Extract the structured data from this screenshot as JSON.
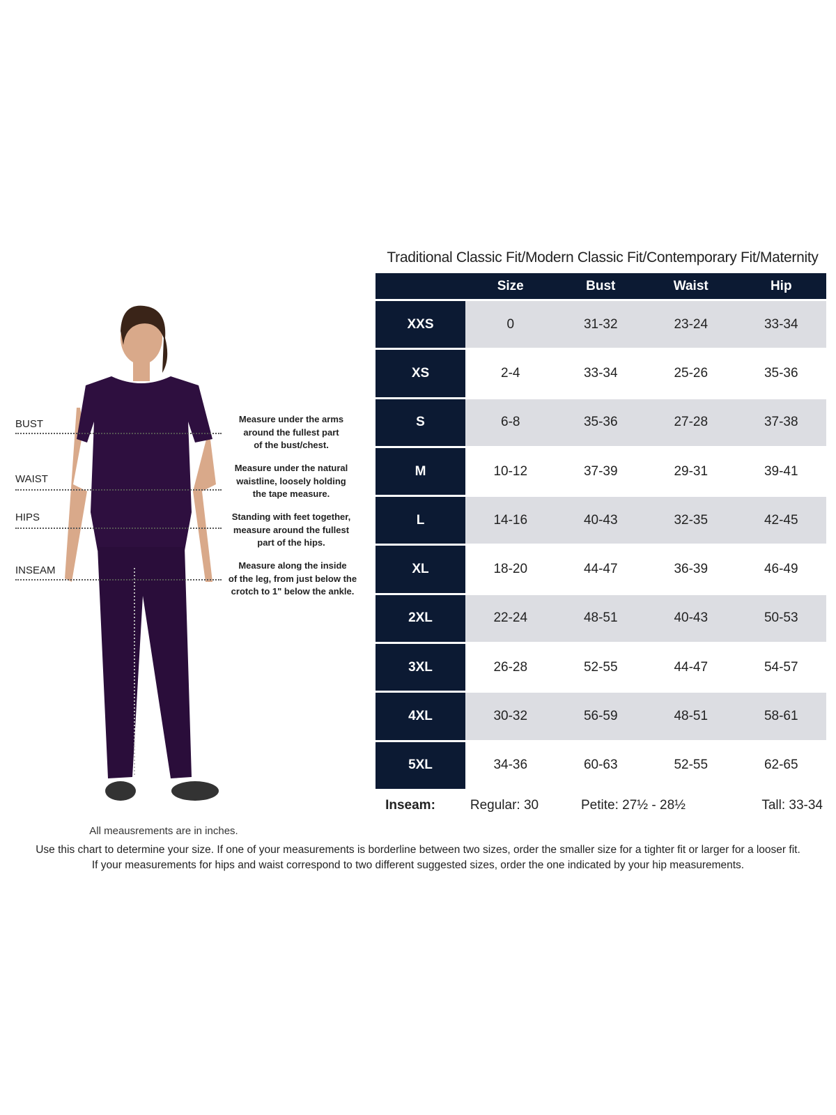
{
  "title": "Traditional Classic Fit/Modern Classic Fit/Contemporary Fit/Maternity",
  "colors": {
    "header": "#0c1a33",
    "stripe": "#dcdde2",
    "garment": "#2e0f3f"
  },
  "table": {
    "headers": [
      "",
      "Size",
      "Bust",
      "Waist",
      "Hip"
    ],
    "rows": [
      [
        "XXS",
        "0",
        "31-32",
        "23-24",
        "33-34"
      ],
      [
        "XS",
        "2-4",
        "33-34",
        "25-26",
        "35-36"
      ],
      [
        "S",
        "6-8",
        "35-36",
        "27-28",
        "37-38"
      ],
      [
        "M",
        "10-12",
        "37-39",
        "29-31",
        "39-41"
      ],
      [
        "L",
        "14-16",
        "40-43",
        "32-35",
        "42-45"
      ],
      [
        "XL",
        "18-20",
        "44-47",
        "36-39",
        "46-49"
      ],
      [
        "2XL",
        "22-24",
        "48-51",
        "40-43",
        "50-53"
      ],
      [
        "3XL",
        "26-28",
        "52-55",
        "44-47",
        "54-57"
      ],
      [
        "4XL",
        "30-32",
        "56-59",
        "48-51",
        "58-61"
      ],
      [
        "5XL",
        "34-36",
        "60-63",
        "52-55",
        "62-65"
      ]
    ]
  },
  "inseam": {
    "label": "Inseam:",
    "regular": "Regular: 30",
    "petite": "Petite: 27½ - 28½",
    "tall": "Tall: 33-34"
  },
  "measurements": [
    {
      "label": "BUST",
      "desc": [
        "Measure under the arms",
        "around the fullest part",
        "of the bust/chest."
      ]
    },
    {
      "label": "WAIST",
      "desc": [
        "Measure under the natural",
        "waistline, loosely holding",
        "the tape measure."
      ]
    },
    {
      "label": "HIPS",
      "desc": [
        "Standing with feet together,",
        "measure around the fullest",
        "part of the hips."
      ]
    },
    {
      "label": "INSEAM",
      "desc": [
        "Measure along the inside",
        "of the leg, from just below the",
        "crotch to 1\" below the ankle."
      ]
    }
  ],
  "units_note": "All meausrements are in inches.",
  "footer": [
    "Use this chart to determine your size. If one of your measurements is borderline between two sizes, order the smaller size for a tighter fit or larger for a looser fit.",
    "If your measurements for hips and waist correspond to two different suggested sizes, order the one indicated by your hip measurements."
  ]
}
